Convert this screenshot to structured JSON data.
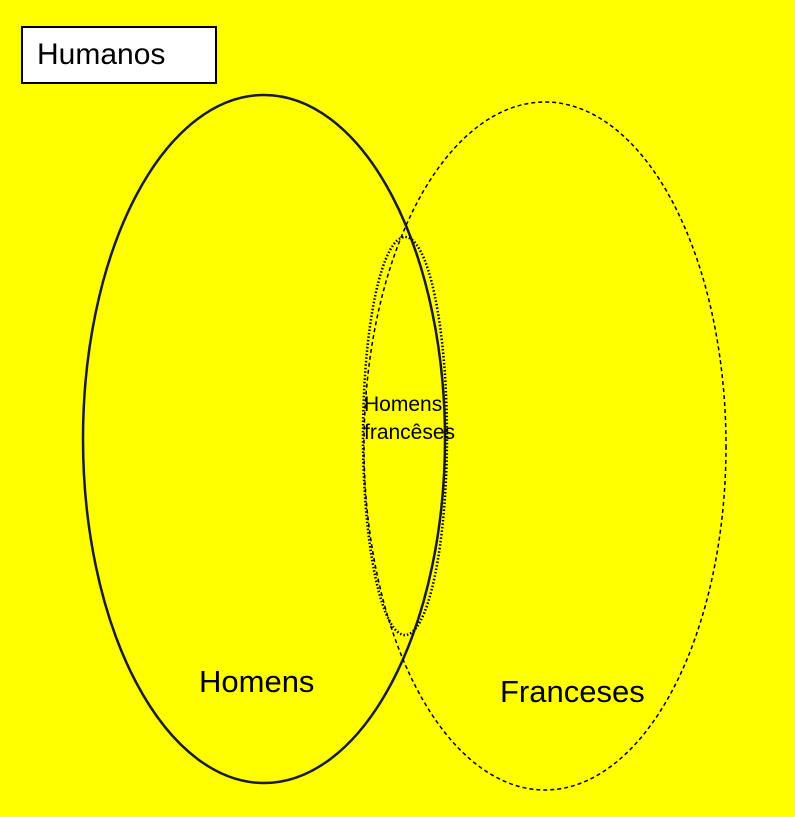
{
  "universe": {
    "label": "Humanos"
  },
  "sets": {
    "men": {
      "label": "Homens"
    },
    "french": {
      "label": "Franceses"
    },
    "intersection": {
      "line1": "Homens",
      "line2": "francêses"
    }
  },
  "colors": {
    "background": "#ffff00",
    "outline": "#000000",
    "label_box": "#ffffff"
  }
}
